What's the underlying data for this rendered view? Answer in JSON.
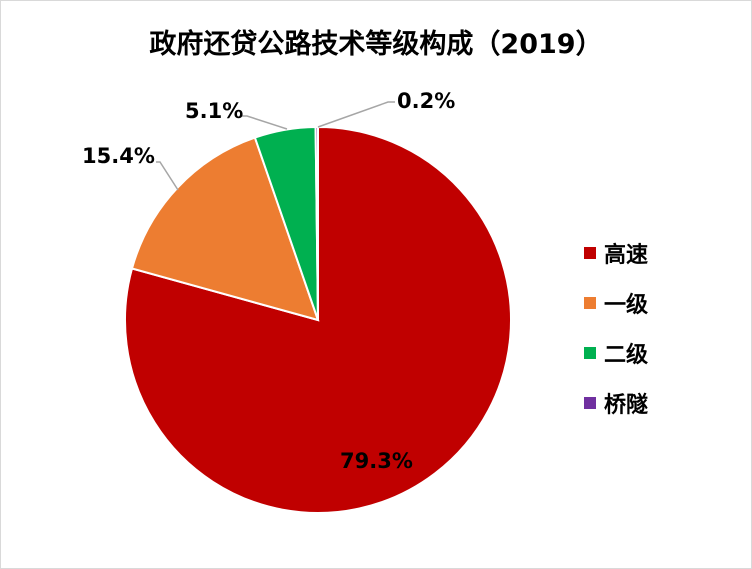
{
  "chart_data": {
    "type": "pie",
    "title": "政府还贷公路技术等级构成（2019）",
    "categories": [
      "高速",
      "一级",
      "二级",
      "桥隧"
    ],
    "values": [
      79.3,
      15.4,
      5.1,
      0.2
    ],
    "labels": [
      "79.3%",
      "15.4%",
      "5.1%",
      "0.2%"
    ],
    "colors": [
      "#C00000",
      "#ED7D31",
      "#00B050",
      "#7030A0"
    ],
    "start_angle": "12 o'clock",
    "direction": "clockwise",
    "legend_position": "right"
  }
}
